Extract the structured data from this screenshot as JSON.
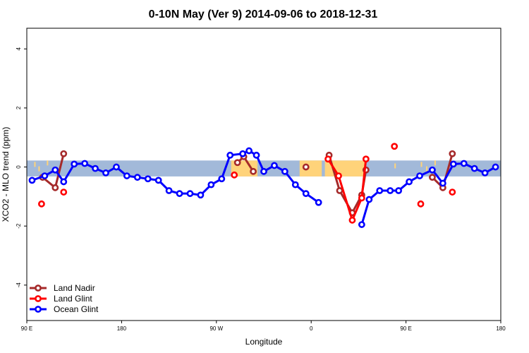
{
  "chart_data": {
    "type": "line",
    "title": "0-10N May (Ver 9)   2014-09-06 to 2018-12-31",
    "xlabel": "Longitude",
    "ylabel": "XCO2 - MLO trend (ppm)",
    "xlim": [
      0,
      450
    ],
    "ylim": [
      -5.2,
      4.7
    ],
    "x_ticks": [
      {
        "value": 0,
        "label": "90 E"
      },
      {
        "value": 90,
        "label": "180"
      },
      {
        "value": 180,
        "label": "90 W"
      },
      {
        "value": 270,
        "label": "0"
      },
      {
        "value": 360,
        "label": "90 E"
      },
      {
        "value": 450,
        "label": "180"
      }
    ],
    "y_ticks": [
      -4,
      -2,
      0,
      2,
      4
    ],
    "legend_position": "bottom-left",
    "legend": [
      "Land Nadir",
      "Land Glint",
      "Ocean Glint"
    ],
    "colors": {
      "land_nadir": "#a52a2a",
      "land_glint": "#ff0000",
      "ocean_glint": "#0000ff",
      "ocean_band": "#a2b9d9",
      "land_band": "#ffd37a"
    },
    "series": [
      {
        "name": "Land Nadir",
        "color": "#a52a2a",
        "segments": [
          [
            [
              15,
              -0.35
            ],
            [
              27,
              -0.7
            ],
            [
              35,
              0.45
            ]
          ],
          [
            [
              200,
              0.15
            ],
            [
              206,
              0.35
            ],
            [
              215,
              -0.15
            ]
          ],
          [
            [
              265,
              0.0
            ]
          ],
          [
            [
              287,
              0.4
            ],
            [
              297,
              -0.8
            ],
            [
              309,
              -1.55
            ],
            [
              318,
              -0.95
            ],
            [
              322,
              -0.1
            ]
          ],
          [
            [
              385,
              -0.35
            ],
            [
              395,
              -0.7
            ],
            [
              404,
              0.45
            ]
          ]
        ]
      },
      {
        "name": "Land Glint",
        "color": "#ff0000",
        "segments": [
          [
            [
              14,
              -1.25
            ]
          ],
          [
            [
              35,
              -0.85
            ]
          ],
          [
            [
              197,
              -0.27
            ]
          ],
          [
            [
              286,
              0.27
            ],
            [
              296,
              -0.3
            ],
            [
              309,
              -1.8
            ],
            [
              318,
              -1.05
            ],
            [
              322,
              0.27
            ]
          ],
          [
            [
              349,
              0.7
            ]
          ],
          [
            [
              374,
              -1.25
            ]
          ],
          [
            [
              404,
              -0.85
            ]
          ]
        ]
      },
      {
        "name": "Ocean Glint",
        "color": "#0000ff",
        "segments": [
          [
            [
              5,
              -0.45
            ],
            [
              17,
              -0.3
            ],
            [
              27,
              -0.1
            ],
            [
              35,
              -0.5
            ],
            [
              45,
              0.1
            ],
            [
              55,
              0.12
            ],
            [
              65,
              -0.05
            ],
            [
              75,
              -0.2
            ],
            [
              85,
              0.0
            ],
            [
              95,
              -0.3
            ],
            [
              105,
              -0.35
            ],
            [
              115,
              -0.4
            ],
            [
              125,
              -0.45
            ],
            [
              135,
              -0.8
            ],
            [
              145,
              -0.9
            ],
            [
              155,
              -0.9
            ],
            [
              165,
              -0.95
            ],
            [
              175,
              -0.6
            ],
            [
              185,
              -0.4
            ],
            [
              193,
              0.4
            ],
            [
              205,
              0.45
            ],
            [
              211,
              0.55
            ],
            [
              218,
              0.4
            ],
            [
              225,
              -0.15
            ],
            [
              235,
              0.05
            ],
            [
              245,
              -0.15
            ],
            [
              255,
              -0.6
            ],
            [
              265,
              -0.9
            ],
            [
              277,
              -1.2
            ]
          ],
          [
            [
              318,
              -1.95
            ],
            [
              325,
              -1.1
            ],
            [
              335,
              -0.8
            ],
            [
              345,
              -0.8
            ],
            [
              353,
              -0.8
            ],
            [
              363,
              -0.5
            ],
            [
              373,
              -0.3
            ],
            [
              385,
              -0.1
            ],
            [
              395,
              -0.55
            ],
            [
              405,
              0.1
            ],
            [
              415,
              0.12
            ],
            [
              425,
              -0.05
            ],
            [
              435,
              -0.2
            ],
            [
              445,
              0.0
            ]
          ]
        ]
      }
    ]
  }
}
